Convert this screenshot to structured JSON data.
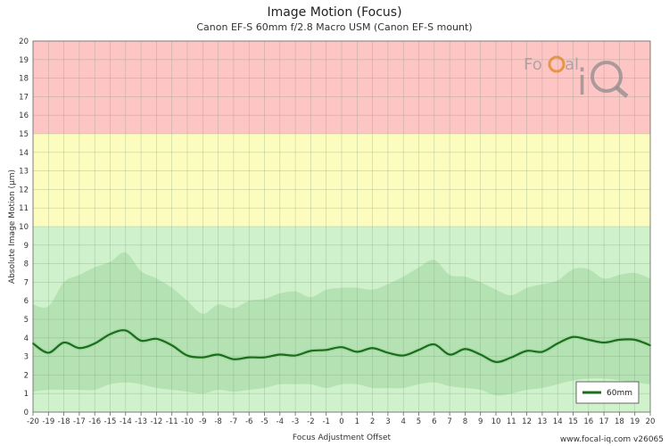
{
  "chart_data": {
    "type": "line",
    "title": "Image Motion (Focus)",
    "subtitle": "Canon EF-S 60mm f/2.8 Macro USM (Canon EF-S mount)",
    "xlabel": "Focus Adjustment Offset",
    "ylabel": "Absolute Image Motion (µm)",
    "xlim": [
      -20,
      20
    ],
    "ylim": [
      0,
      20
    ],
    "x_ticks": [
      -20,
      -19,
      -18,
      -17,
      -16,
      -15,
      -14,
      -13,
      -12,
      -11,
      -10,
      -9,
      -8,
      -7,
      -6,
      -5,
      -4,
      -3,
      -2,
      -1,
      0,
      1,
      2,
      3,
      4,
      5,
      6,
      7,
      8,
      9,
      10,
      11,
      12,
      13,
      14,
      15,
      16,
      17,
      18,
      19,
      20
    ],
    "y_ticks": [
      0,
      1,
      2,
      3,
      4,
      5,
      6,
      7,
      8,
      9,
      10,
      11,
      12,
      13,
      14,
      15,
      16,
      17,
      18,
      19,
      20
    ],
    "grid": true,
    "zones": [
      {
        "from": 0,
        "to": 10,
        "color": "#cff2cc"
      },
      {
        "from": 10,
        "to": 15,
        "color": "#fdfcbf"
      },
      {
        "from": 15,
        "to": 20,
        "color": "#fec5c5"
      }
    ],
    "x": [
      -20,
      -19,
      -18,
      -17,
      -16,
      -15,
      -14,
      -13,
      -12,
      -11,
      -10,
      -9,
      -8,
      -7,
      -6,
      -5,
      -4,
      -3,
      -2,
      -1,
      0,
      1,
      2,
      3,
      4,
      5,
      6,
      7,
      8,
      9,
      10,
      11,
      12,
      13,
      14,
      15,
      16,
      17,
      18,
      19,
      20
    ],
    "series": [
      {
        "name": "60mm",
        "color": "#1a6e1a",
        "values": [
          3.7,
          3.2,
          3.75,
          3.45,
          3.7,
          4.2,
          4.4,
          3.85,
          3.95,
          3.6,
          3.05,
          2.95,
          3.1,
          2.85,
          2.95,
          2.95,
          3.1,
          3.05,
          3.3,
          3.35,
          3.5,
          3.25,
          3.45,
          3.2,
          3.05,
          3.35,
          3.65,
          3.1,
          3.4,
          3.1,
          2.7,
          2.95,
          3.3,
          3.25,
          3.7,
          4.05,
          3.9,
          3.75,
          3.9,
          3.9,
          3.6
        ],
        "band_upper": [
          5.8,
          5.7,
          7.0,
          7.4,
          7.8,
          8.1,
          8.6,
          7.6,
          7.2,
          6.7,
          6.0,
          5.3,
          5.8,
          5.6,
          6.0,
          6.1,
          6.4,
          6.5,
          6.2,
          6.6,
          6.7,
          6.7,
          6.6,
          6.9,
          7.3,
          7.8,
          8.2,
          7.4,
          7.3,
          7.0,
          6.6,
          6.3,
          6.7,
          6.9,
          7.1,
          7.7,
          7.7,
          7.2,
          7.4,
          7.5,
          7.2
        ],
        "band_lower": [
          1.1,
          1.2,
          1.2,
          1.2,
          1.2,
          1.5,
          1.6,
          1.5,
          1.3,
          1.2,
          1.1,
          1.0,
          1.2,
          1.1,
          1.2,
          1.3,
          1.5,
          1.5,
          1.5,
          1.3,
          1.5,
          1.5,
          1.3,
          1.3,
          1.3,
          1.5,
          1.6,
          1.4,
          1.3,
          1.2,
          0.9,
          1.0,
          1.2,
          1.3,
          1.5,
          1.7,
          1.8,
          1.8,
          1.7,
          1.6,
          1.5
        ]
      }
    ],
    "legend_position": "bottom-right"
  },
  "logo": {
    "text_top": "FoCal",
    "text_big": "iQ"
  },
  "footer": "www.focal-iq.com  v26065"
}
